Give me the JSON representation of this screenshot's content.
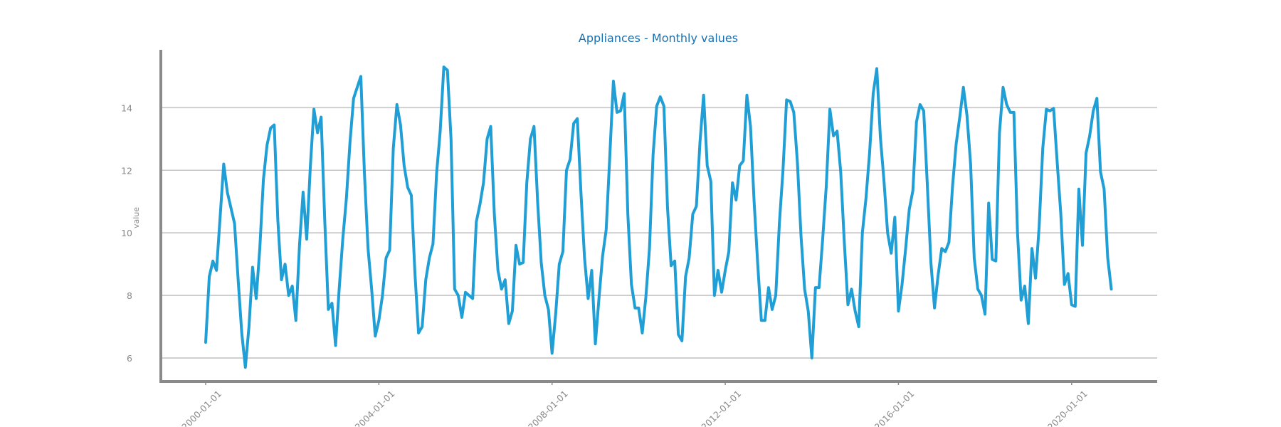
{
  "chart_data": {
    "type": "line",
    "title": "Appliances - Monthly values",
    "xlabel": "",
    "ylabel": "value",
    "x_start": "2000-01-01",
    "x_frequency": "monthly",
    "x_ticks": [
      "2000-01-01",
      "2004-01-01",
      "2008-01-01",
      "2012-01-01",
      "2016-01-01",
      "2020-01-01"
    ],
    "y_ticks": [
      6,
      8,
      10,
      12,
      14
    ],
    "ylim": [
      5.25,
      15.85
    ],
    "grid": "horizontal",
    "colors": {
      "line": "#1f9fd5",
      "title": "#1a6faf",
      "axis": "#8a8a8a",
      "grid": "#c4c4c4"
    },
    "series": [
      {
        "values": [
          6.5,
          8.6,
          9.1,
          8.8,
          10.5,
          12.2,
          11.3,
          10.8,
          10.3,
          8.5,
          6.8,
          5.7,
          7.0,
          8.9,
          7.9,
          9.5,
          11.7,
          12.8,
          13.35,
          13.45,
          10.4,
          8.5,
          9.0,
          8.0,
          8.3,
          7.2,
          9.6,
          11.3,
          9.8,
          12.1,
          13.95,
          13.2,
          13.7,
          10.4,
          7.55,
          7.75,
          6.4,
          8.2,
          9.8,
          11.1,
          12.9,
          14.3,
          14.65,
          15.0,
          11.9,
          9.5,
          8.2,
          6.7,
          7.2,
          8.0,
          9.2,
          9.45,
          12.7,
          14.1,
          13.45,
          12.15,
          11.45,
          11.2,
          8.7,
          6.8,
          7.0,
          8.5,
          9.2,
          9.65,
          11.9,
          13.25,
          15.3,
          15.2,
          13.0,
          8.2,
          8.0,
          7.3,
          8.1,
          8.0,
          7.9,
          10.35,
          10.9,
          11.6,
          13.0,
          13.4,
          10.6,
          8.8,
          8.2,
          8.5,
          7.1,
          7.5,
          9.6,
          9.0,
          9.05,
          11.6,
          13.0,
          13.4,
          11.0,
          9.05,
          8.0,
          7.55,
          6.15,
          7.4,
          9.0,
          9.4,
          12.0,
          12.35,
          13.5,
          13.65,
          11.3,
          9.2,
          7.9,
          8.8,
          6.45,
          7.9,
          9.25,
          10.1,
          12.45,
          14.85,
          13.85,
          13.9,
          14.45,
          10.6,
          8.35,
          7.6,
          7.6,
          6.8,
          7.95,
          9.5,
          12.5,
          14.05,
          14.35,
          14.05,
          10.8,
          8.95,
          9.1,
          6.75,
          6.55,
          8.6,
          9.2,
          10.6,
          10.85,
          12.9,
          14.4,
          12.15,
          11.65,
          8.0,
          8.8,
          8.1,
          8.8,
          9.4,
          11.6,
          11.05,
          12.15,
          12.3,
          14.4,
          13.4,
          11.0,
          9.0,
          7.2,
          7.2,
          8.25,
          7.55,
          8.0,
          10.3,
          12.0,
          14.25,
          14.2,
          13.85,
          12.25,
          9.9,
          8.2,
          7.5,
          6.0,
          8.25,
          8.25,
          9.8,
          11.5,
          13.95,
          13.1,
          13.25,
          11.95,
          9.7,
          7.7,
          8.2,
          7.5,
          7.0,
          10.0,
          11.1,
          12.55,
          14.45,
          15.25,
          13.05,
          11.65,
          10.0,
          9.35,
          10.5,
          7.5,
          8.35,
          9.5,
          10.75,
          11.35,
          13.55,
          14.1,
          13.9,
          11.55,
          9.05,
          7.6,
          8.65,
          9.5,
          9.4,
          9.7,
          11.5,
          12.85,
          13.7,
          14.65,
          13.75,
          12.2,
          9.2,
          8.2,
          8.0,
          7.4,
          10.95,
          9.15,
          9.1,
          13.2,
          14.65,
          14.1,
          13.85,
          13.85,
          10.0,
          7.85,
          8.3,
          7.1,
          9.5,
          8.55,
          10.2,
          12.7,
          13.95,
          13.9,
          13.98,
          12.25,
          10.6,
          8.35,
          8.7,
          7.7,
          7.65,
          11.4,
          9.6,
          12.55,
          13.1,
          13.9,
          14.3,
          11.95,
          11.4,
          9.2,
          8.2
        ]
      }
    ]
  }
}
